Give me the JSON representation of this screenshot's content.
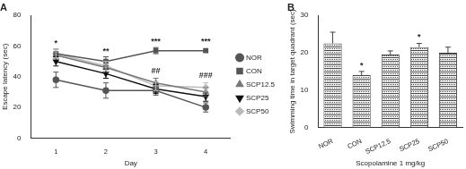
{
  "chart_data": [
    {
      "type": "line",
      "title": "A",
      "x_label": "Day",
      "y_label": "Escape latency (sec)",
      "categories": [
        "1",
        "2",
        "3",
        "4"
      ],
      "ylim": [
        0,
        80
      ],
      "yticks": [
        0,
        20,
        40,
        60,
        80
      ],
      "grid": false,
      "legend": "right",
      "series": [
        {
          "name": "NOR",
          "color": "#555555",
          "marker": "circle",
          "values": [
            38,
            31,
            31,
            20
          ],
          "errors": [
            5,
            5,
            3,
            3
          ]
        },
        {
          "name": "CON",
          "color": "#555555",
          "marker": "square",
          "values": [
            55,
            50,
            57,
            57
          ],
          "errors": [
            3,
            3,
            2,
            1
          ]
        },
        {
          "name": "SCP12.5",
          "color": "#777777",
          "marker": "triangle",
          "values": [
            54,
            46,
            36,
            30
          ],
          "errors": [
            2,
            3,
            3,
            3
          ]
        },
        {
          "name": "SCP25",
          "color": "#111111",
          "marker": "triangle_down",
          "values": [
            50,
            42,
            32,
            27
          ],
          "errors": [
            3,
            3,
            3,
            3
          ]
        },
        {
          "name": "SCP50",
          "color": "#bbbbbb",
          "marker": "diamond",
          "values": [
            55,
            47,
            34,
            33
          ],
          "errors": [
            3,
            3,
            3,
            3
          ]
        }
      ],
      "annotations": [
        {
          "text": "*",
          "x": "1",
          "y": 59
        },
        {
          "text": "**",
          "x": "2",
          "y": 54
        },
        {
          "text": "***",
          "x": "3",
          "y": 60
        },
        {
          "text": "***",
          "x": "4",
          "y": 60
        },
        {
          "text": "##",
          "x": "3",
          "y": 41
        },
        {
          "text": "###",
          "x": "4",
          "y": 38
        }
      ]
    },
    {
      "type": "bar",
      "title": "B",
      "x_label": "Scopolamine 1 mg/kg",
      "y_label": "Swimming time in target quadrant (sec)",
      "categories": [
        "NOR",
        "CON",
        "SCP12.5",
        "SCP25",
        "SCP50"
      ],
      "values": [
        22.5,
        14,
        19.5,
        21.5,
        20
      ],
      "errors": [
        3,
        1,
        1,
        1,
        1.5
      ],
      "color": "#444444",
      "ylim": [
        0,
        30
      ],
      "yticks": [
        0,
        10,
        20,
        30
      ],
      "grid": false,
      "annotations": [
        {
          "text": "*",
          "x": "CON",
          "y": 15.5
        },
        {
          "text": "*",
          "x": "SCP25",
          "y": 23
        }
      ]
    }
  ]
}
